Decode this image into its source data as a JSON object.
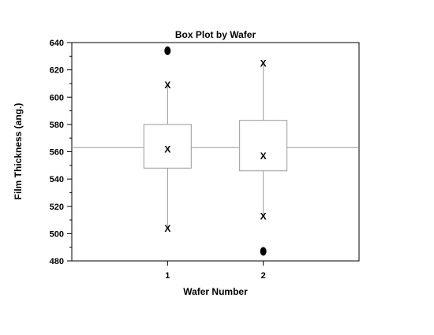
{
  "chart_data": {
    "type": "box",
    "title": "Box Plot by Wafer",
    "xlabel": "Wafer Number",
    "ylabel": "Film Thickness (ang.)",
    "ylim": [
      480,
      640
    ],
    "yticks": [
      480,
      500,
      520,
      540,
      560,
      580,
      600,
      620,
      640
    ],
    "xlim": [
      0,
      3
    ],
    "categories": [
      "1",
      "2"
    ],
    "grand_mean": 563,
    "boxes": [
      {
        "category": "1",
        "q1": 548,
        "median": 562,
        "q3": 580,
        "whisker_low": 504,
        "whisker_high": 609,
        "lower_x_marker": 504,
        "upper_x_marker": 609,
        "outliers": [
          634
        ]
      },
      {
        "category": "2",
        "q1": 546,
        "median": 557,
        "q3": 583,
        "whisker_low": 513,
        "whisker_high": 625,
        "lower_x_marker": 513,
        "upper_x_marker": 625,
        "outliers": [
          487
        ]
      }
    ],
    "marker_symbol": "X",
    "grid": false,
    "legend": "none"
  }
}
